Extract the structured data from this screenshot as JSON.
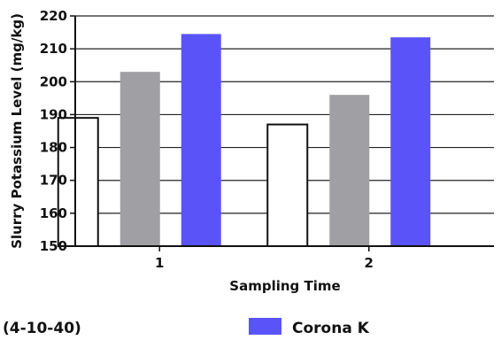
{
  "chart_data": {
    "type": "bar",
    "title": "",
    "xlabel": "Sampling Time",
    "ylabel": "Slurry Potassium Level (mg/kg)",
    "categories": [
      "1",
      "2"
    ],
    "ylim": [
      150,
      220
    ],
    "yticks": [
      150,
      160,
      170,
      180,
      190,
      200,
      210,
      220
    ],
    "grid": true,
    "legend_position": "bottom",
    "series": [
      {
        "name": "",
        "color": "#ffffff",
        "stroke": "#111111",
        "values": [
          189,
          187
        ]
      },
      {
        "name": "",
        "color": "#a0a0a4",
        "stroke": "none",
        "values": [
          203,
          196
        ]
      },
      {
        "name": "Corona K",
        "color": "#5a54f8",
        "stroke": "none",
        "values": [
          214.5,
          213.5
        ]
      }
    ],
    "legend_entries": [
      {
        "label": "(4-10-40)",
        "swatch": false
      },
      {
        "label": "Corona K",
        "swatch": true,
        "color": "#5a54f8"
      }
    ]
  }
}
